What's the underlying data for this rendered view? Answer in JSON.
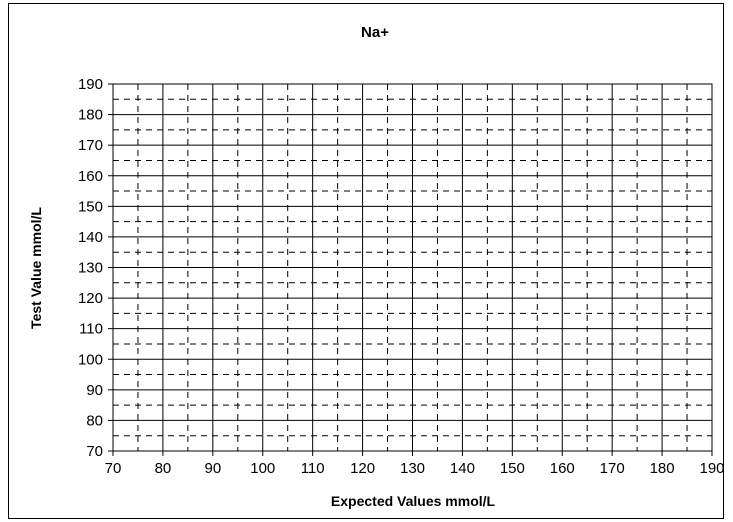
{
  "chart_data": {
    "type": "scatter",
    "title": "Na+",
    "xlabel": "Expected Values mmol/L",
    "ylabel": "Test Value mmol/L",
    "xlim": [
      70,
      190
    ],
    "ylim": [
      70,
      190
    ],
    "major_step": 10,
    "minor_step": 5,
    "grid": true,
    "minor_grid_style": "dashed",
    "series": [],
    "x_ticks": [
      "70",
      "80",
      "90",
      "100",
      "110",
      "120",
      "130",
      "140",
      "150",
      "160",
      "170",
      "180",
      "190"
    ],
    "y_ticks": [
      "70",
      "80",
      "90",
      "100",
      "110",
      "120",
      "130",
      "140",
      "150",
      "160",
      "170",
      "180",
      "190"
    ]
  }
}
